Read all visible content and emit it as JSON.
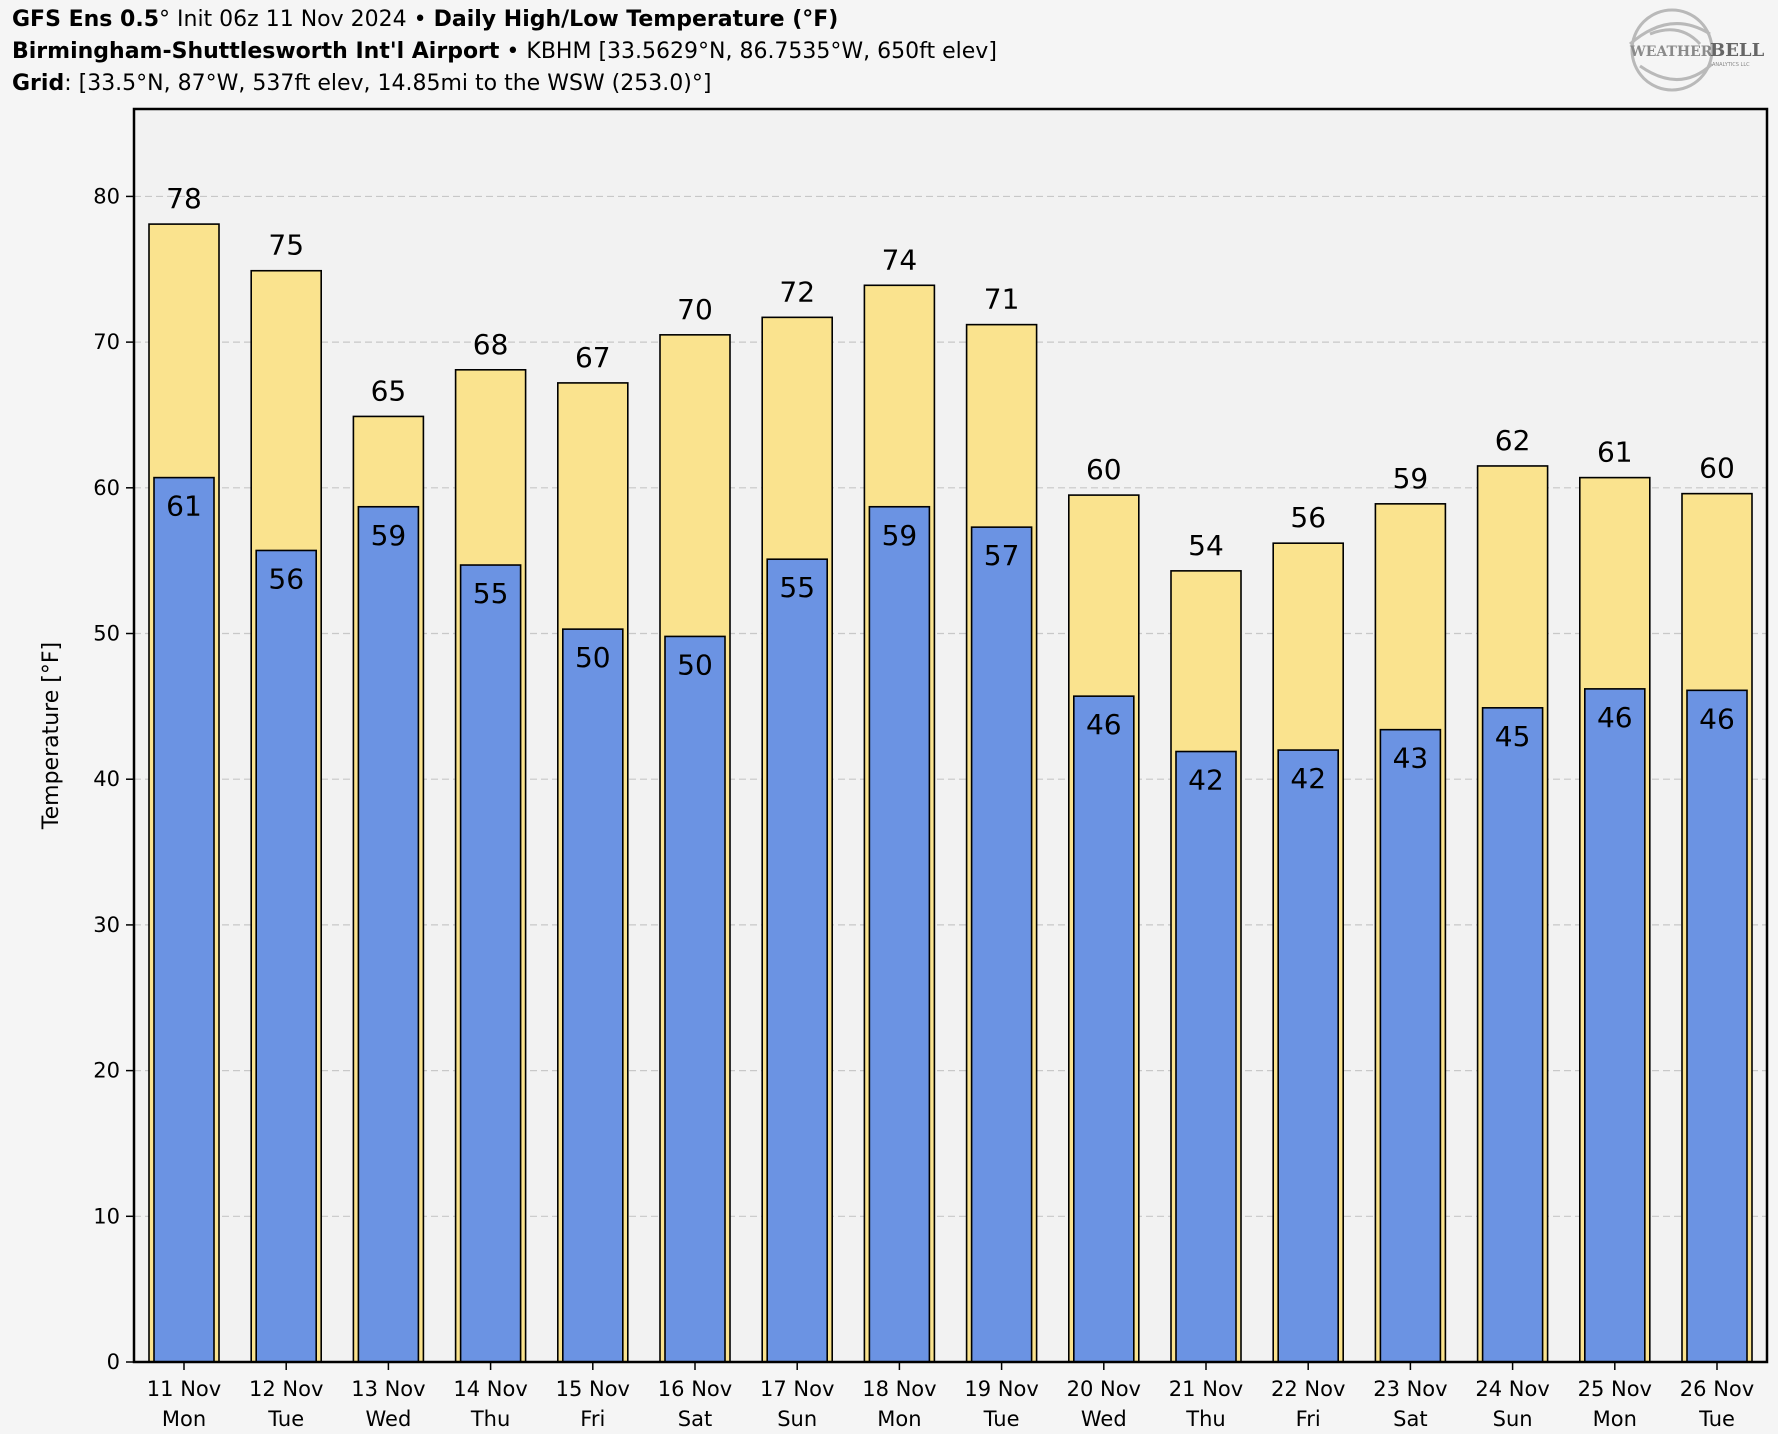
{
  "header": {
    "line1": {
      "model": "GFS Ens 0.5",
      "deg": "°",
      "init": " Init 06z 11 Nov 2024",
      "bullet": " • ",
      "product": "Daily High/Low Temperature (°F)"
    },
    "line2": {
      "station": "Birmingham-Shuttlesworth Int'l Airport",
      "bullet": " • ",
      "details": "KBHM [33.5629°N, 86.7535°W, 650ft elev]"
    },
    "line3": {
      "label": "Grid",
      "details": ": [33.5°N, 87°W, 537ft elev, 14.85mi to the WSW (253.0)°]"
    }
  },
  "logo": {
    "text_weather": "WEATHER",
    "text_bell": "BELL",
    "text_small": "ANALYTICS LLC"
  },
  "colors": {
    "high": "#fae38e",
    "low": "#6b93e3",
    "outline": "#000000",
    "plot_bg": "#f2f2f2",
    "grid": "#c8c8c8"
  },
  "chart_data": {
    "type": "bar",
    "xlabel": "",
    "ylabel": "Temperature [°F]",
    "ylim": [
      0,
      86
    ],
    "yticks": [
      0,
      10,
      20,
      30,
      40,
      50,
      60,
      70,
      80
    ],
    "grid": true,
    "categories": [
      [
        "11 Nov",
        "Mon"
      ],
      [
        "12 Nov",
        "Tue"
      ],
      [
        "13 Nov",
        "Wed"
      ],
      [
        "14 Nov",
        "Thu"
      ],
      [
        "15 Nov",
        "Fri"
      ],
      [
        "16 Nov",
        "Sat"
      ],
      [
        "17 Nov",
        "Sun"
      ],
      [
        "18 Nov",
        "Mon"
      ],
      [
        "19 Nov",
        "Tue"
      ],
      [
        "20 Nov",
        "Wed"
      ],
      [
        "21 Nov",
        "Thu"
      ],
      [
        "22 Nov",
        "Fri"
      ],
      [
        "23 Nov",
        "Sat"
      ],
      [
        "24 Nov",
        "Sun"
      ],
      [
        "25 Nov",
        "Mon"
      ],
      [
        "26 Nov",
        "Tue"
      ]
    ],
    "series": [
      {
        "values": [
          78.1,
          74.9,
          64.9,
          68.1,
          67.2,
          70.5,
          71.7,
          73.9,
          71.2,
          59.5,
          54.3,
          56.2,
          58.9,
          61.5,
          60.7,
          59.6
        ],
        "labels": [
          "78",
          "75",
          "65",
          "68",
          "67",
          "70",
          "72",
          "74",
          "71",
          "60",
          "54",
          "56",
          "59",
          "62",
          "61",
          "60"
        ]
      },
      {
        "values": [
          60.7,
          55.7,
          58.7,
          54.7,
          50.3,
          49.8,
          55.1,
          58.7,
          57.3,
          45.7,
          41.9,
          42.0,
          43.4,
          44.9,
          46.2,
          46.1
        ],
        "labels": [
          "61",
          "56",
          "59",
          "55",
          "50",
          "50",
          "55",
          "59",
          "57",
          "46",
          "42",
          "42",
          "43",
          "45",
          "46",
          "46"
        ]
      }
    ]
  }
}
